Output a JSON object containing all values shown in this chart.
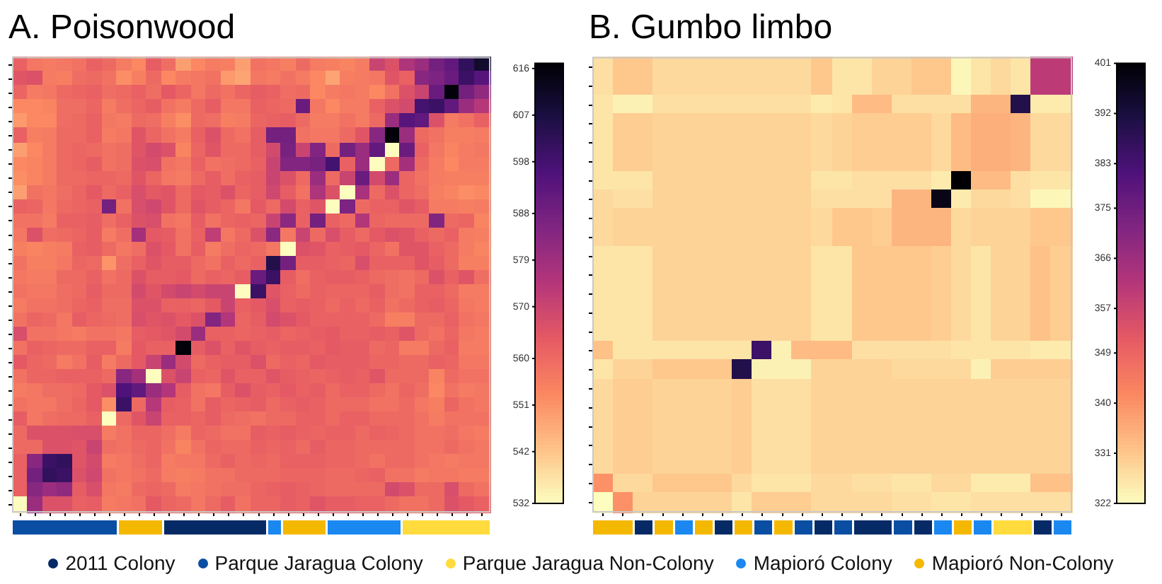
{
  "chart_data": [
    {
      "type": "heatmap",
      "title": "A. Poisonwood",
      "legend": "bottom",
      "categories": [
        null,
        null,
        null,
        null,
        null,
        null,
        null,
        null,
        null,
        null,
        null,
        null,
        null,
        null,
        null,
        null,
        null,
        null,
        null,
        null,
        null,
        null,
        null,
        null,
        null,
        null,
        null,
        null,
        null,
        null,
        null,
        null
      ],
      "y_categories": [
        null,
        null,
        null,
        null,
        null,
        null,
        null,
        null,
        null,
        null,
        null,
        null,
        null,
        null,
        null,
        null,
        null,
        null,
        null,
        null,
        null,
        null,
        null,
        null,
        null,
        null,
        null,
        null,
        null,
        null,
        null,
        null
      ],
      "clim": [
        532,
        617
      ],
      "cticks": [
        532,
        542,
        551,
        560,
        570,
        579,
        588,
        598,
        607,
        616
      ],
      "colors": [
        "#0a4ea3",
        "#0a4ea3",
        "#0a4ea3",
        "#0a4ea3",
        "#0a4ea3",
        "#0a4ea3",
        "#0a4ea3",
        "#f5b800",
        "#f5b800",
        "#f5b800",
        "#062a66",
        "#062a66",
        "#062a66",
        "#062a66",
        "#062a66",
        "#062a66",
        "#062a66",
        "#1a88f0",
        "#f5b800",
        "#f5b800",
        "#f5b800",
        "#1a88f0",
        "#1a88f0",
        "#1a88f0",
        "#1a88f0",
        "#1a88f0",
        "#ffdb3d",
        "#ffdb3d",
        "#ffdb3d",
        "#ffdb3d",
        "#ffdb3d",
        "#ffdb3d"
      ],
      "series": [
        {
          "name": "2011 Colony",
          "color": "#062a66",
          "values": [
            null,
            null,
            null,
            null,
            null,
            null,
            null,
            null,
            null,
            null,
            null,
            null,
            null,
            null,
            null,
            null,
            null,
            null,
            null,
            null,
            null,
            null,
            null,
            null,
            null,
            null,
            null,
            null,
            null,
            null,
            null,
            null
          ]
        },
        {
          "name": "Parque Jaragua Colony",
          "color": "#0a4ea3",
          "values": [
            null,
            null,
            null,
            null,
            null,
            null,
            null,
            null,
            null,
            null,
            null,
            null,
            null,
            null,
            null,
            null,
            null,
            null,
            null,
            null,
            null,
            null,
            null,
            null,
            null,
            null,
            null,
            null,
            null,
            null,
            null,
            null
          ]
        },
        {
          "name": "Parque Jaragua Non-Colony",
          "color": "#ffdb3d",
          "values": [
            null,
            null,
            null,
            null,
            null,
            null,
            null,
            null,
            null,
            null,
            null,
            null,
            null,
            null,
            null,
            null,
            null,
            null,
            null,
            null,
            null,
            null,
            null,
            null,
            null,
            null,
            null,
            null,
            null,
            null,
            null,
            null
          ]
        },
        {
          "name": "Mapioró Colony",
          "color": "#1a88f0",
          "values": [
            null,
            null,
            null,
            null,
            null,
            null,
            null,
            null,
            null,
            null,
            null,
            null,
            null,
            null,
            null,
            null,
            null,
            null,
            null,
            null,
            null,
            null,
            null,
            null,
            null,
            null,
            null,
            null,
            null,
            null,
            null,
            null
          ]
        },
        {
          "name": "Mapioró Non-Colony",
          "color": "#f5b800",
          "values": [
            null,
            null,
            null,
            null,
            null,
            null,
            null,
            null,
            null,
            null,
            null,
            null,
            null,
            null,
            null,
            null,
            null,
            null,
            null,
            null,
            null,
            null,
            null,
            null,
            null,
            null,
            null,
            null,
            null,
            null,
            null,
            null
          ]
        }
      ],
      "cells": [
        [
          562,
          557,
          556,
          557,
          558,
          562,
          560,
          556,
          553,
          563,
          559,
          549,
          553,
          556,
          555,
          549,
          558,
          557,
          555,
          560,
          556,
          555,
          554,
          556,
          570,
          566,
          576,
          580,
          588,
          592,
          602,
          610
        ],
        [
          565,
          566,
          556,
          555,
          559,
          560,
          558,
          552,
          555,
          560,
          553,
          556,
          557,
          558,
          550,
          548,
          557,
          556,
          558,
          556,
          553,
          548,
          555,
          556,
          557,
          565,
          562,
          584,
          586,
          590,
          600,
          594
        ],
        [
          561,
          556,
          557,
          560,
          561,
          562,
          559,
          560,
          562,
          559,
          564,
          561,
          557,
          560,
          558,
          561,
          563,
          562,
          559,
          560,
          553,
          556,
          557,
          556,
          553,
          558,
          566,
          570,
          590,
          616,
          588,
          582
        ],
        [
          553,
          553,
          554,
          559,
          559,
          561,
          556,
          559,
          561,
          563,
          558,
          556,
          560,
          563,
          557,
          557,
          562,
          561,
          560,
          590,
          557,
          553,
          556,
          556,
          562,
          566,
          568,
          598,
          600,
          592,
          580,
          574
        ],
        [
          550,
          553,
          553,
          559,
          560,
          562,
          557,
          556,
          560,
          559,
          555,
          552,
          560,
          559,
          555,
          556,
          561,
          562,
          563,
          560,
          556,
          556,
          558,
          556,
          560,
          580,
          594,
          592,
          566,
          556,
          558,
          562
        ],
        [
          562,
          555,
          556,
          560,
          560,
          562,
          556,
          557,
          565,
          561,
          558,
          556,
          562,
          566,
          560,
          558,
          563,
          588,
          588,
          558,
          557,
          557,
          560,
          565,
          584,
          616,
          580,
          560,
          558,
          555,
          555,
          556
        ],
        [
          549,
          553,
          556,
          560,
          561,
          560,
          558,
          559,
          565,
          568,
          566,
          554,
          561,
          565,
          560,
          560,
          563,
          568,
          587,
          570,
          585,
          560,
          588,
          580,
          592,
          532,
          590,
          562,
          557,
          554,
          556,
          557
        ],
        [
          553,
          554,
          556,
          560,
          561,
          563,
          558,
          559,
          566,
          567,
          558,
          557,
          562,
          558,
          559,
          560,
          562,
          570,
          585,
          585,
          587,
          598,
          562,
          580,
          532,
          560,
          578,
          560,
          556,
          553,
          556,
          556
        ],
        [
          552,
          554,
          556,
          560,
          560,
          561,
          561,
          560,
          565,
          561,
          557,
          556,
          560,
          563,
          559,
          562,
          563,
          570,
          566,
          560,
          580,
          560,
          570,
          590,
          568,
          580,
          561,
          558,
          556,
          555,
          555,
          555
        ],
        [
          549,
          558,
          557,
          559,
          561,
          564,
          560,
          562,
          567,
          564,
          565,
          560,
          564,
          563,
          566,
          561,
          563,
          569,
          563,
          558,
          576,
          566,
          532,
          577,
          560,
          566,
          561,
          559,
          555,
          554,
          552,
          553
        ],
        [
          562,
          561,
          557,
          560,
          561,
          562,
          588,
          558,
          567,
          569,
          565,
          560,
          565,
          563,
          561,
          557,
          564,
          560,
          568,
          562,
          565,
          532,
          586,
          560,
          562,
          562,
          565,
          563,
          556,
          556,
          555,
          556
        ],
        [
          558,
          558,
          556,
          562,
          562,
          563,
          559,
          562,
          566,
          567,
          558,
          557,
          563,
          558,
          561,
          562,
          561,
          570,
          583,
          562,
          588,
          562,
          560,
          575,
          561,
          560,
          560,
          560,
          585,
          560,
          561,
          554
        ],
        [
          557,
          566,
          559,
          560,
          561,
          563,
          556,
          559,
          578,
          564,
          563,
          558,
          562,
          572,
          557,
          560,
          566,
          583,
          557,
          570,
          560,
          567,
          563,
          560,
          564,
          566,
          565,
          562,
          560,
          562,
          556,
          555
        ],
        [
          555,
          554,
          555,
          556,
          562,
          563,
          560,
          557,
          559,
          566,
          564,
          558,
          563,
          556,
          559,
          561,
          560,
          557,
          532,
          566,
          565,
          562,
          563,
          564,
          561,
          558,
          565,
          565,
          562,
          560,
          556,
          554
        ],
        [
          558,
          555,
          555,
          557,
          561,
          560,
          551,
          559,
          562,
          565,
          563,
          563,
          560,
          558,
          562,
          560,
          562,
          605,
          588,
          563,
          563,
          562,
          561,
          567,
          562,
          562,
          562,
          565,
          563,
          560,
          555,
          555
        ],
        [
          557,
          556,
          556,
          560,
          560,
          562,
          558,
          560,
          566,
          563,
          563,
          564,
          560,
          562,
          561,
          563,
          590,
          600,
          563,
          559,
          562,
          563,
          563,
          562,
          560,
          559,
          558,
          560,
          566,
          562,
          565,
          559
        ],
        [
          558,
          557,
          557,
          559,
          560,
          563,
          560,
          560,
          568,
          565,
          568,
          570,
          568,
          570,
          570,
          532,
          600,
          565,
          562,
          560,
          562,
          561,
          561,
          561,
          563,
          559,
          558,
          562,
          562,
          560,
          556,
          556
        ],
        [
          556,
          558,
          558,
          559,
          561,
          562,
          559,
          559,
          566,
          566,
          562,
          562,
          561,
          564,
          570,
          562,
          564,
          567,
          562,
          563,
          562,
          560,
          562,
          560,
          562,
          558,
          560,
          562,
          563,
          561,
          557,
          556
        ],
        [
          558,
          561,
          560,
          557,
          563,
          561,
          560,
          559,
          567,
          565,
          566,
          564,
          566,
          585,
          575,
          561,
          563,
          568,
          566,
          564,
          562,
          562,
          562,
          562,
          560,
          555,
          555,
          560,
          560,
          562,
          558,
          557
        ],
        [
          567,
          558,
          558,
          557,
          556,
          558,
          558,
          557,
          563,
          564,
          565,
          568,
          580,
          562,
          562,
          561,
          562,
          563,
          561,
          562,
          563,
          564,
          562,
          562,
          563,
          562,
          565,
          560,
          558,
          561,
          557,
          556
        ],
        [
          558,
          562,
          561,
          560,
          560,
          562,
          562,
          556,
          564,
          562,
          562,
          616,
          563,
          566,
          562,
          565,
          563,
          562,
          563,
          563,
          562,
          564,
          563,
          563,
          560,
          561,
          556,
          556,
          560,
          562,
          556,
          556
        ],
        [
          564,
          561,
          560,
          556,
          558,
          563,
          556,
          560,
          564,
          570,
          580,
          568,
          560,
          562,
          563,
          563,
          566,
          560,
          562,
          561,
          564,
          563,
          563,
          563,
          561,
          561,
          560,
          560,
          562,
          561,
          557,
          557
        ],
        [
          558,
          561,
          561,
          562,
          562,
          562,
          560,
          584,
          578,
          532,
          566,
          570,
          562,
          561,
          565,
          562,
          562,
          565,
          563,
          562,
          561,
          562,
          563,
          562,
          565,
          560,
          560,
          560,
          554,
          560,
          558,
          558
        ],
        [
          556,
          557,
          559,
          559,
          560,
          564,
          566,
          596,
          592,
          580,
          575,
          563,
          558,
          557,
          563,
          566,
          563,
          562,
          564,
          562,
          563,
          560,
          562,
          562,
          560,
          558,
          561,
          559,
          553,
          558,
          556,
          557
        ],
        [
          558,
          557,
          557,
          559,
          561,
          564,
          552,
          600,
          560,
          574,
          563,
          562,
          558,
          563,
          561,
          562,
          563,
          560,
          562,
          563,
          562,
          560,
          560,
          560,
          558,
          558,
          560,
          557,
          555,
          561,
          558,
          557
        ],
        [
          563,
          557,
          559,
          560,
          560,
          562,
          532,
          560,
          565,
          570,
          562,
          562,
          561,
          563,
          560,
          559,
          558,
          560,
          560,
          562,
          562,
          560,
          562,
          562,
          560,
          560,
          560,
          558,
          556,
          558,
          558,
          558
        ],
        [
          560,
          566,
          566,
          566,
          567,
          567,
          556,
          558,
          561,
          561,
          559,
          556,
          561,
          560,
          558,
          558,
          563,
          562,
          563,
          562,
          561,
          562,
          562,
          560,
          562,
          561,
          560,
          558,
          558,
          559,
          557,
          556
        ],
        [
          560,
          560,
          566,
          566,
          565,
          570,
          559,
          558,
          560,
          561,
          558,
          554,
          558,
          561,
          560,
          560,
          562,
          561,
          562,
          560,
          563,
          561,
          561,
          560,
          560,
          560,
          560,
          558,
          558,
          560,
          558,
          557
        ],
        [
          562,
          584,
          600,
          602,
          565,
          568,
          556,
          557,
          559,
          561,
          556,
          557,
          557,
          560,
          562,
          560,
          561,
          560,
          562,
          562,
          562,
          561,
          561,
          560,
          558,
          560,
          560,
          558,
          557,
          556,
          557,
          557
        ],
        [
          562,
          588,
          602,
          600,
          566,
          569,
          558,
          557,
          558,
          560,
          556,
          555,
          556,
          558,
          558,
          560,
          560,
          560,
          561,
          561,
          561,
          560,
          560,
          561,
          562,
          558,
          558,
          556,
          557,
          557,
          556,
          556
        ],
        [
          562,
          584,
          580,
          582,
          563,
          567,
          557,
          556,
          560,
          561,
          560,
          556,
          557,
          558,
          559,
          559,
          561,
          562,
          563,
          562,
          561,
          560,
          560,
          560,
          560,
          568,
          566,
          560,
          560,
          567,
          560,
          558
        ],
        [
          532,
          580,
          566,
          566,
          562,
          563,
          556,
          557,
          558,
          564,
          561,
          560,
          557,
          560,
          563,
          558,
          561,
          561,
          563,
          562,
          565,
          563,
          563,
          562,
          562,
          560,
          558,
          558,
          560,
          566,
          564,
          562
        ]
      ]
    },
    {
      "type": "heatmap",
      "title": "B. Gumbo limbo",
      "categories": [
        null,
        null,
        null,
        null,
        null,
        null,
        null,
        null,
        null,
        null,
        null,
        null,
        null,
        null,
        null,
        null,
        null,
        null,
        null,
        null,
        null,
        null,
        null,
        null
      ],
      "y_categories": [
        null,
        null,
        null,
        null,
        null,
        null,
        null,
        null,
        null,
        null,
        null,
        null,
        null,
        null,
        null,
        null,
        null,
        null,
        null,
        null,
        null,
        null,
        null,
        null
      ],
      "clim": [
        322,
        401
      ],
      "cticks": [
        322,
        331,
        340,
        349,
        357,
        366,
        375,
        383,
        392,
        401
      ],
      "colors": [
        "#f5b800",
        "#f5b800",
        "#062a66",
        "#f5b800",
        "#1a88f0",
        "#f5b800",
        "#062a66",
        "#f5b800",
        "#0a4ea3",
        "#f5b800",
        "#0a4ea3",
        "#062a66",
        "#0a4ea3",
        "#062a66",
        "#062a66",
        "#0a4ea3",
        "#062a66",
        "#1a88f0",
        "#f5b800",
        "#1a88f0",
        "#ffdb3d",
        "#ffdb3d",
        "#062a66",
        "#1a88f0"
      ],
      "cells": [
        [
          327,
          331,
          331,
          328,
          328,
          328,
          328,
          328,
          328,
          328,
          328,
          331,
          326,
          326,
          329,
          329,
          331,
          331,
          323,
          326,
          328,
          326,
          360,
          360
        ],
        [
          327,
          331,
          331,
          328,
          328,
          328,
          328,
          328,
          328,
          328,
          328,
          331,
          326,
          326,
          329,
          329,
          331,
          331,
          323,
          326,
          328,
          326,
          360,
          360
        ],
        [
          326,
          324,
          324,
          327,
          327,
          327,
          327,
          327,
          327,
          327,
          327,
          325,
          326,
          333,
          333,
          327,
          327,
          327,
          327,
          334,
          334,
          390,
          325,
          325
        ],
        [
          326,
          330,
          330,
          329,
          329,
          329,
          329,
          329,
          329,
          329,
          329,
          328,
          329,
          330,
          330,
          330,
          330,
          328,
          333,
          335,
          335,
          334,
          328,
          328
        ],
        [
          326,
          330,
          330,
          329,
          329,
          329,
          329,
          329,
          329,
          329,
          329,
          328,
          329,
          330,
          330,
          330,
          330,
          328,
          333,
          335,
          335,
          334,
          328,
          328
        ],
        [
          326,
          330,
          330,
          329,
          329,
          329,
          329,
          329,
          329,
          329,
          329,
          328,
          329,
          330,
          330,
          330,
          330,
          328,
          333,
          335,
          335,
          334,
          328,
          328
        ],
        [
          326,
          326,
          326,
          329,
          329,
          329,
          329,
          329,
          329,
          329,
          329,
          326,
          326,
          327,
          327,
          327,
          327,
          325,
          401,
          333,
          333,
          327,
          326,
          326
        ],
        [
          328,
          327,
          327,
          329,
          329,
          329,
          329,
          329,
          329,
          329,
          329,
          327,
          327,
          327,
          327,
          334,
          334,
          398,
          325,
          328,
          328,
          327,
          323,
          323
        ],
        [
          328,
          329,
          329,
          329,
          329,
          329,
          329,
          329,
          329,
          329,
          329,
          328,
          331,
          331,
          330,
          334,
          334,
          334,
          328,
          329,
          329,
          329,
          331,
          331
        ],
        [
          328,
          329,
          329,
          329,
          329,
          329,
          329,
          329,
          329,
          329,
          329,
          328,
          331,
          331,
          330,
          334,
          334,
          334,
          328,
          329,
          329,
          329,
          331,
          331
        ],
        [
          326,
          326,
          326,
          329,
          329,
          329,
          329,
          329,
          329,
          329,
          329,
          326,
          326,
          331,
          331,
          331,
          331,
          330,
          328,
          326,
          329,
          329,
          332,
          330
        ],
        [
          326,
          326,
          326,
          329,
          329,
          329,
          329,
          329,
          329,
          329,
          329,
          326,
          326,
          331,
          331,
          331,
          331,
          330,
          328,
          326,
          329,
          329,
          332,
          330
        ],
        [
          326,
          326,
          326,
          329,
          329,
          329,
          329,
          329,
          329,
          329,
          329,
          326,
          326,
          331,
          331,
          331,
          331,
          330,
          328,
          326,
          329,
          329,
          332,
          330
        ],
        [
          326,
          326,
          326,
          329,
          329,
          329,
          329,
          329,
          329,
          329,
          329,
          326,
          326,
          331,
          331,
          331,
          331,
          330,
          328,
          326,
          329,
          329,
          332,
          330
        ],
        [
          326,
          326,
          326,
          329,
          329,
          329,
          329,
          329,
          329,
          329,
          329,
          326,
          326,
          331,
          331,
          331,
          331,
          330,
          328,
          326,
          329,
          329,
          332,
          330
        ],
        [
          332,
          326,
          326,
          326,
          326,
          326,
          326,
          326,
          385,
          324,
          333,
          333,
          333,
          327,
          327,
          327,
          327,
          327,
          326,
          326,
          326,
          326,
          325,
          325
        ],
        [
          326,
          329,
          329,
          331,
          331,
          331,
          331,
          390,
          324,
          324,
          324,
          329,
          329,
          329,
          329,
          328,
          328,
          328,
          328,
          324,
          330,
          330,
          330,
          330
        ],
        [
          328,
          330,
          330,
          329,
          329,
          329,
          329,
          330,
          327,
          327,
          327,
          329,
          329,
          329,
          329,
          329,
          329,
          329,
          329,
          329,
          329,
          329,
          329,
          329
        ],
        [
          328,
          330,
          330,
          329,
          329,
          329,
          329,
          330,
          327,
          327,
          327,
          329,
          329,
          329,
          329,
          329,
          329,
          329,
          329,
          329,
          329,
          329,
          329,
          329
        ],
        [
          328,
          330,
          330,
          329,
          329,
          329,
          329,
          330,
          327,
          327,
          327,
          329,
          329,
          329,
          329,
          329,
          329,
          329,
          329,
          329,
          329,
          329,
          329,
          329
        ],
        [
          328,
          330,
          330,
          329,
          329,
          329,
          329,
          330,
          327,
          327,
          327,
          329,
          329,
          329,
          329,
          329,
          329,
          329,
          329,
          329,
          329,
          329,
          329,
          329
        ],
        [
          328,
          330,
          330,
          329,
          329,
          329,
          329,
          330,
          327,
          327,
          327,
          329,
          329,
          329,
          329,
          329,
          329,
          329,
          329,
          329,
          329,
          329,
          329,
          329
        ],
        [
          340,
          328,
          328,
          331,
          331,
          331,
          331,
          328,
          326,
          326,
          326,
          328,
          328,
          327,
          327,
          326,
          326,
          328,
          328,
          325,
          325,
          325,
          332,
          332
        ],
        [
          322,
          340,
          329,
          329,
          329,
          329,
          329,
          326,
          330,
          330,
          330,
          328,
          328,
          328,
          328,
          327,
          327,
          326,
          326,
          327,
          327,
          327,
          327,
          327
        ]
      ]
    }
  ]
}
